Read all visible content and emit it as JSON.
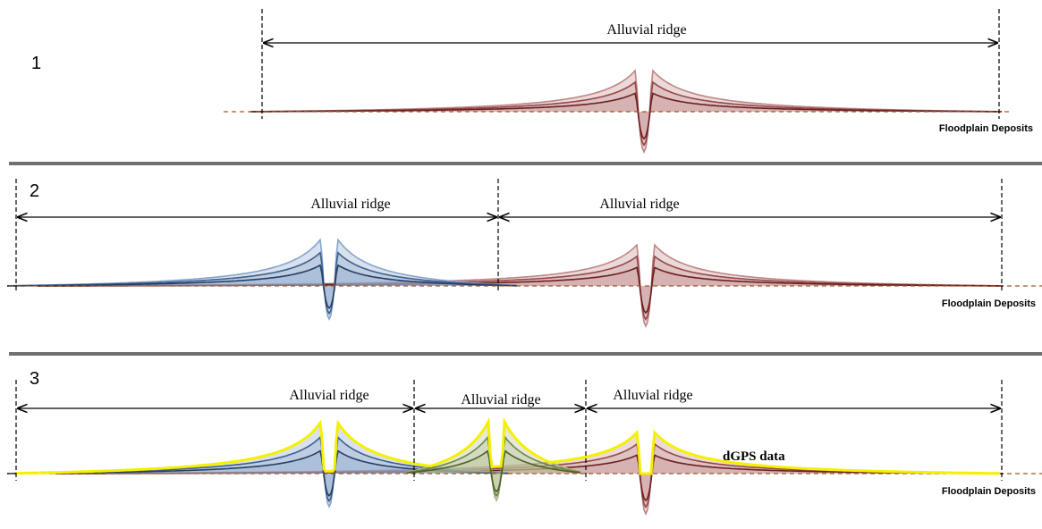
{
  "panels": [
    {
      "number": "1",
      "ridges": [
        "Alluvial ridge"
      ],
      "floodplain": "Floodplain Deposits"
    },
    {
      "number": "2",
      "ridges": [
        "Alluvial ridge",
        "Alluvial ridge"
      ],
      "floodplain": "Floodplain Deposits"
    },
    {
      "number": "3",
      "ridges": [
        "Alluvial ridge",
        "Alluvial ridge",
        "Alluvial ridge"
      ],
      "floodplain": "Floodplain Deposits",
      "annotation": "dGPS data"
    }
  ]
}
